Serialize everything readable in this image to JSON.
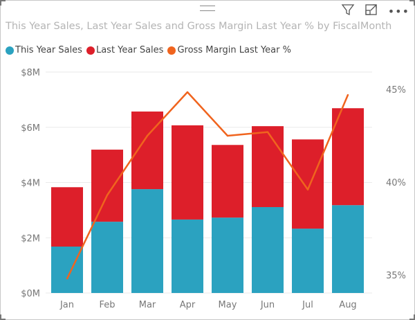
{
  "header": {
    "icons": [
      "drag-handle-icon",
      "filter-icon",
      "focus-mode-icon",
      "more-options-icon"
    ]
  },
  "chart_data": {
    "type": "bar",
    "subtype": "stacked-column-and-line",
    "title": "This Year Sales, Last Year Sales and Gross Margin Last Year % by FiscalMonth",
    "categories": [
      "Jan",
      "Feb",
      "Mar",
      "Apr",
      "May",
      "Jun",
      "Jul",
      "Aug"
    ],
    "series": [
      {
        "name": "This Year Sales",
        "type": "bar",
        "axis": "left",
        "color": "#2ba2c0",
        "values": [
          1.68,
          2.58,
          3.76,
          2.66,
          2.73,
          3.11,
          2.33,
          3.18
        ]
      },
      {
        "name": "Last Year Sales",
        "type": "bar",
        "axis": "left",
        "color": "#dd1f2a",
        "values": [
          2.15,
          2.61,
          2.81,
          3.41,
          2.63,
          2.93,
          3.23,
          3.51
        ]
      },
      {
        "name": "Gross Margin Last Year %",
        "type": "line",
        "axis": "right",
        "color": "#f0641e",
        "values": [
          34.8,
          39.3,
          42.5,
          44.85,
          42.5,
          42.7,
          39.6,
          44.7
        ]
      }
    ],
    "y_left": {
      "ticks": [
        "$0M",
        "$2M",
        "$4M",
        "$6M",
        "$8M"
      ],
      "range": [
        0,
        8
      ],
      "unit": "$M"
    },
    "y_right": {
      "ticks": [
        "35%",
        "40%",
        "45%"
      ],
      "tick_values": [
        35,
        40,
        45
      ]
    },
    "grid": true,
    "legend": "top-left"
  }
}
